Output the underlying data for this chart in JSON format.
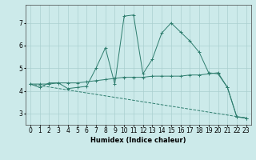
{
  "x_ticks": [
    0,
    1,
    2,
    3,
    4,
    5,
    6,
    7,
    8,
    9,
    10,
    11,
    12,
    13,
    14,
    15,
    16,
    17,
    18,
    19,
    20,
    21,
    22,
    23
  ],
  "line1": {
    "x": [
      0,
      1,
      2,
      3,
      4,
      5,
      6,
      7,
      8,
      9,
      10,
      11,
      12,
      13,
      14,
      15,
      16,
      17,
      18,
      19,
      20,
      21,
      22,
      23
    ],
    "y": [
      4.3,
      4.15,
      4.35,
      4.35,
      4.1,
      4.15,
      4.2,
      5.0,
      5.9,
      4.3,
      7.3,
      7.35,
      4.75,
      5.4,
      6.55,
      7.0,
      6.6,
      6.2,
      5.7,
      4.8,
      4.75,
      4.15,
      2.85,
      2.8
    ]
  },
  "line2": {
    "x": [
      0,
      1,
      2,
      3,
      4,
      5,
      6,
      7,
      8,
      9,
      10,
      11,
      12,
      13,
      14,
      15,
      16,
      17,
      18,
      19,
      20,
      21,
      22,
      23
    ],
    "y": [
      4.3,
      4.3,
      4.3,
      4.35,
      4.35,
      4.35,
      4.4,
      4.45,
      4.5,
      4.55,
      4.6,
      4.6,
      4.6,
      4.65,
      4.65,
      4.65,
      4.65,
      4.7,
      4.7,
      4.75,
      4.8,
      4.15,
      2.85,
      2.8
    ]
  },
  "line3": {
    "x": [
      0,
      23
    ],
    "y": [
      4.3,
      2.8
    ]
  },
  "color": "#2e7d6e",
  "bg_color": "#cceaea",
  "grid_color": "#aacfcf",
  "xlabel": "Humidex (Indice chaleur)",
  "ylim": [
    2.5,
    7.8
  ],
  "xlim": [
    -0.5,
    23.5
  ]
}
